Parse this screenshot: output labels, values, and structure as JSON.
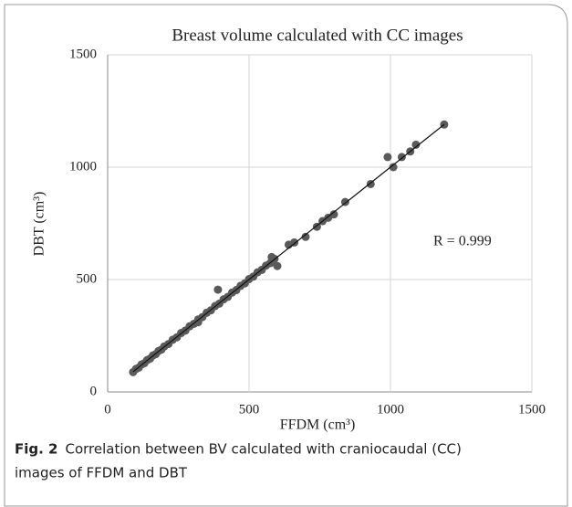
{
  "chart_data": {
    "type": "scatter",
    "title": "Breast volume calculated with CC images",
    "x_label": "FFDM (cm³)",
    "y_label": "DBT (cm³)",
    "annotation": "R = 0.999",
    "color": "#5a5a5a",
    "grid": true,
    "xlim": [
      0,
      1500
    ],
    "xticks": [
      0,
      500,
      1000,
      1500
    ],
    "ylim": [
      0,
      1500
    ],
    "yticks": [
      0,
      500,
      1000,
      1500
    ],
    "x": [
      90,
      100,
      110,
      120,
      130,
      140,
      150,
      160,
      170,
      180,
      190,
      200,
      215,
      230,
      245,
      260,
      275,
      290,
      305,
      320,
      335,
      350,
      365,
      380,
      395,
      410,
      425,
      440,
      455,
      470,
      485,
      500,
      515,
      530,
      545,
      560,
      575,
      590,
      320,
      390,
      580,
      600,
      640,
      660,
      700,
      740,
      760,
      780,
      800,
      840,
      930,
      990,
      1010,
      1040,
      1070,
      1090,
      1190
    ],
    "y": [
      88,
      102,
      108,
      122,
      128,
      142,
      148,
      162,
      168,
      182,
      188,
      202,
      213,
      232,
      243,
      262,
      273,
      292,
      303,
      322,
      333,
      352,
      363,
      382,
      393,
      412,
      423,
      442,
      453,
      472,
      483,
      502,
      513,
      532,
      543,
      562,
      573,
      592,
      310,
      455,
      600,
      560,
      655,
      665,
      690,
      735,
      760,
      775,
      790,
      845,
      925,
      1045,
      1000,
      1045,
      1070,
      1100,
      1190
    ],
    "trendline": {
      "x": [
        90,
        1190
      ],
      "y": [
        90,
        1190
      ]
    }
  },
  "caption": {
    "label": "Fig. 2",
    "lines": [
      "Correlation between BV calculated with craniocaudal (CC)",
      "images of FFDM and DBT"
    ]
  }
}
